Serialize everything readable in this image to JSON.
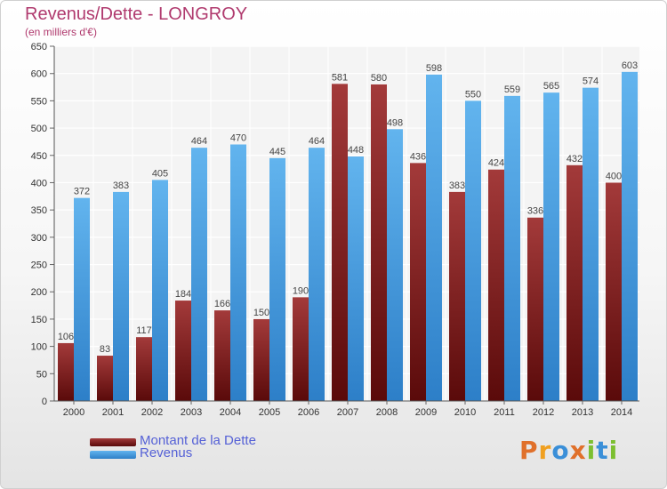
{
  "title": "Revenus/Dette - LONGROY",
  "subtitle": "(en milliers d'€)",
  "logo": {
    "letters": [
      "P",
      "r",
      "o",
      "x",
      "i",
      "t",
      "i"
    ]
  },
  "colors": {
    "debt": "#7a1a1a",
    "debt_light": "#a33a3a",
    "revenue": "#3a8fd8",
    "revenue_light": "#62b4ee",
    "axis_text": "#333333",
    "title": "#b03a6e",
    "legend_text": "#5561d6",
    "logo": [
      "#e0702a",
      "#f0a020",
      "#3a8fd8",
      "#e0702a",
      "#7cbf30",
      "#3a8fd8",
      "#7cbf30"
    ]
  },
  "chart_data": {
    "type": "bar",
    "categories": [
      "2000",
      "2001",
      "2002",
      "2003",
      "2004",
      "2005",
      "2006",
      "2007",
      "2008",
      "2009",
      "2010",
      "2011",
      "2012",
      "2013",
      "2014"
    ],
    "series": [
      {
        "name": "Montant de la Dette",
        "values": [
          106,
          83,
          117,
          184,
          166,
          150,
          190,
          581,
          580,
          436,
          383,
          424,
          336,
          432,
          400
        ]
      },
      {
        "name": "Revenus",
        "values": [
          372,
          383,
          405,
          464,
          470,
          445,
          464,
          448,
          498,
          598,
          550,
          559,
          565,
          574,
          603
        ]
      }
    ],
    "ylim": [
      0,
      650
    ],
    "yticks": [
      0,
      50,
      100,
      150,
      200,
      250,
      300,
      350,
      400,
      450,
      500,
      550,
      600,
      650
    ],
    "grid": true,
    "legend_position": "bottom-left"
  }
}
